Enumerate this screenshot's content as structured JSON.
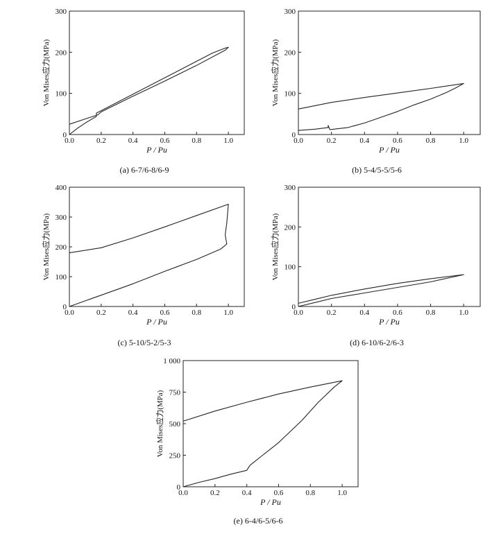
{
  "chart_data": [
    {
      "type": "line",
      "caption": "(a) 6-7/6-8/6-9",
      "xlabel": "P / Pu",
      "ylabel": "Von Mises应力(MPa)",
      "xlim": [
        0.0,
        1.1
      ],
      "ylim": [
        0,
        300
      ],
      "xticks": [
        "0.0",
        "0.2",
        "0.4",
        "0.6",
        "0.8",
        "1.0"
      ],
      "yticks": [
        "0",
        "100",
        "200",
        "300"
      ],
      "series": [
        {
          "x": [
            0.0,
            0.05,
            0.1,
            0.17,
            0.17,
            0.19,
            0.3,
            0.4,
            0.5,
            0.6,
            0.7,
            0.8,
            0.9,
            0.98,
            1.0,
            0.98,
            0.8,
            0.6,
            0.4,
            0.2,
            0.18,
            0.1,
            0.0
          ],
          "y": [
            0,
            15,
            28,
            44,
            52,
            56,
            78,
            98,
            118,
            138,
            158,
            178,
            198,
            210,
            212,
            205,
            168,
            130,
            93,
            55,
            48,
            38,
            25
          ]
        }
      ]
    },
    {
      "type": "line",
      "caption": "(b) 5-4/5-5/5-6",
      "xlabel": "P / Pu",
      "ylabel": "Von Mises应力(MPa)",
      "xlim": [
        0.0,
        1.1
      ],
      "ylim": [
        0,
        300
      ],
      "xticks": [
        "0.0",
        "0.2",
        "0.4",
        "0.6",
        "0.8",
        "1.0"
      ],
      "yticks": [
        "0",
        "100",
        "200",
        "300"
      ],
      "series": [
        {
          "x": [
            0.0,
            0.1,
            0.18,
            0.18,
            0.19,
            0.3,
            0.4,
            0.5,
            0.6,
            0.7,
            0.8,
            0.9,
            0.95,
            1.0,
            0.8,
            0.6,
            0.4,
            0.2,
            0.0
          ],
          "y": [
            10,
            13,
            17,
            22,
            12,
            17,
            28,
            42,
            56,
            72,
            86,
            103,
            113,
            124,
            112,
            101,
            90,
            78,
            62
          ]
        }
      ]
    },
    {
      "type": "line",
      "caption": "(c) 5-10/5-2/5-3",
      "xlabel": "P / Pu",
      "ylabel": "Von Mises应力(MPa)",
      "xlim": [
        0.0,
        1.1
      ],
      "ylim": [
        0,
        400
      ],
      "xticks": [
        "0.0",
        "0.2",
        "0.4",
        "0.6",
        "0.8",
        "1.0"
      ],
      "yticks": [
        "0",
        "100",
        "200",
        "300",
        "400"
      ],
      "series": [
        {
          "x": [
            0.0,
            0.2,
            0.4,
            0.6,
            0.8,
            0.95,
            0.98,
            0.99,
            0.98,
            0.99,
            1.0,
            0.8,
            0.6,
            0.4,
            0.2,
            0.0
          ],
          "y": [
            0,
            38,
            76,
            118,
            158,
            192,
            205,
            210,
            240,
            280,
            343,
            305,
            267,
            230,
            197,
            180
          ]
        }
      ]
    },
    {
      "type": "line",
      "caption": "(d) 6-10/6-2/6-3",
      "xlabel": "P / Pu",
      "ylabel": "Von Mises应力(MPa)",
      "xlim": [
        0.0,
        1.1
      ],
      "ylim": [
        0,
        300
      ],
      "xticks": [
        "0.0",
        "0.2",
        "0.4",
        "0.6",
        "0.8",
        "1.0"
      ],
      "yticks": [
        "0",
        "100",
        "200",
        "300"
      ],
      "series": [
        {
          "x": [
            0.0,
            0.1,
            0.2,
            0.4,
            0.6,
            0.8,
            1.0,
            0.8,
            0.6,
            0.4,
            0.2,
            0.1,
            0.0
          ],
          "y": [
            0,
            10,
            20,
            34,
            48,
            62,
            80,
            70,
            58,
            44,
            28,
            18,
            8
          ]
        }
      ]
    },
    {
      "type": "line",
      "caption": "(e) 6-4/6-5/6-6",
      "xlabel": "P / Pu",
      "ylabel": "Von Mises应力(MPa)",
      "xlim": [
        0.0,
        1.1
      ],
      "ylim": [
        0,
        1000
      ],
      "xticks": [
        "0.0",
        "0.2",
        "0.4",
        "0.6",
        "0.8",
        "1.0"
      ],
      "yticks": [
        "0",
        "250",
        "500",
        "750",
        "1 000"
      ],
      "series": [
        {
          "x": [
            0.0,
            0.1,
            0.2,
            0.3,
            0.4,
            0.42,
            0.45,
            0.5,
            0.55,
            0.6,
            0.65,
            0.7,
            0.75,
            0.8,
            0.85,
            0.9,
            0.95,
            1.0,
            0.8,
            0.6,
            0.4,
            0.2,
            0.0
          ],
          "y": [
            0,
            35,
            65,
            100,
            130,
            170,
            200,
            250,
            300,
            350,
            410,
            470,
            530,
            600,
            670,
            730,
            790,
            840,
            790,
            735,
            670,
            600,
            520
          ]
        }
      ]
    }
  ]
}
